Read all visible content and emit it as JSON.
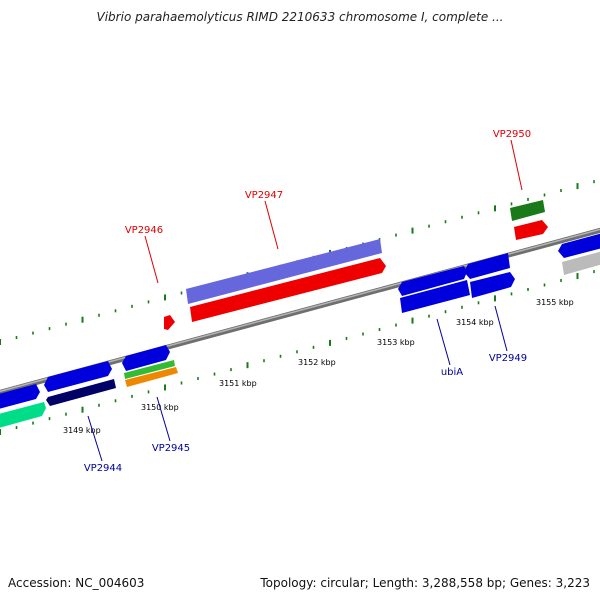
{
  "title": "Vibrio parahaemolyticus RIMD 2210633 chromosome I, complete ...",
  "footer": {
    "accession": "Accession: NC_004603",
    "summary": "Topology: circular; Length: 3,288,558 bp; Genes: 3,223"
  },
  "colors": {
    "axis": "#8a8a8a",
    "tick": "#1a7a1a",
    "scale_label": "#000000",
    "label_red": "#dd0000",
    "label_blue": "#000099"
  },
  "scale_labels": [
    "3149 kbp",
    "3150 kbp",
    "3151 kbp",
    "3152 kbp",
    "3153 kbp",
    "3154 kbp",
    "3155 kbp"
  ],
  "gene_labels": [
    {
      "text": "VP2944",
      "color": "blue"
    },
    {
      "text": "VP2945",
      "color": "blue"
    },
    {
      "text": "VP2946",
      "color": "red"
    },
    {
      "text": "VP2947",
      "color": "red"
    },
    {
      "text": "ubiA",
      "color": "blue"
    },
    {
      "text": "VP2949",
      "color": "blue"
    },
    {
      "text": "VP2950",
      "color": "red"
    }
  ]
}
